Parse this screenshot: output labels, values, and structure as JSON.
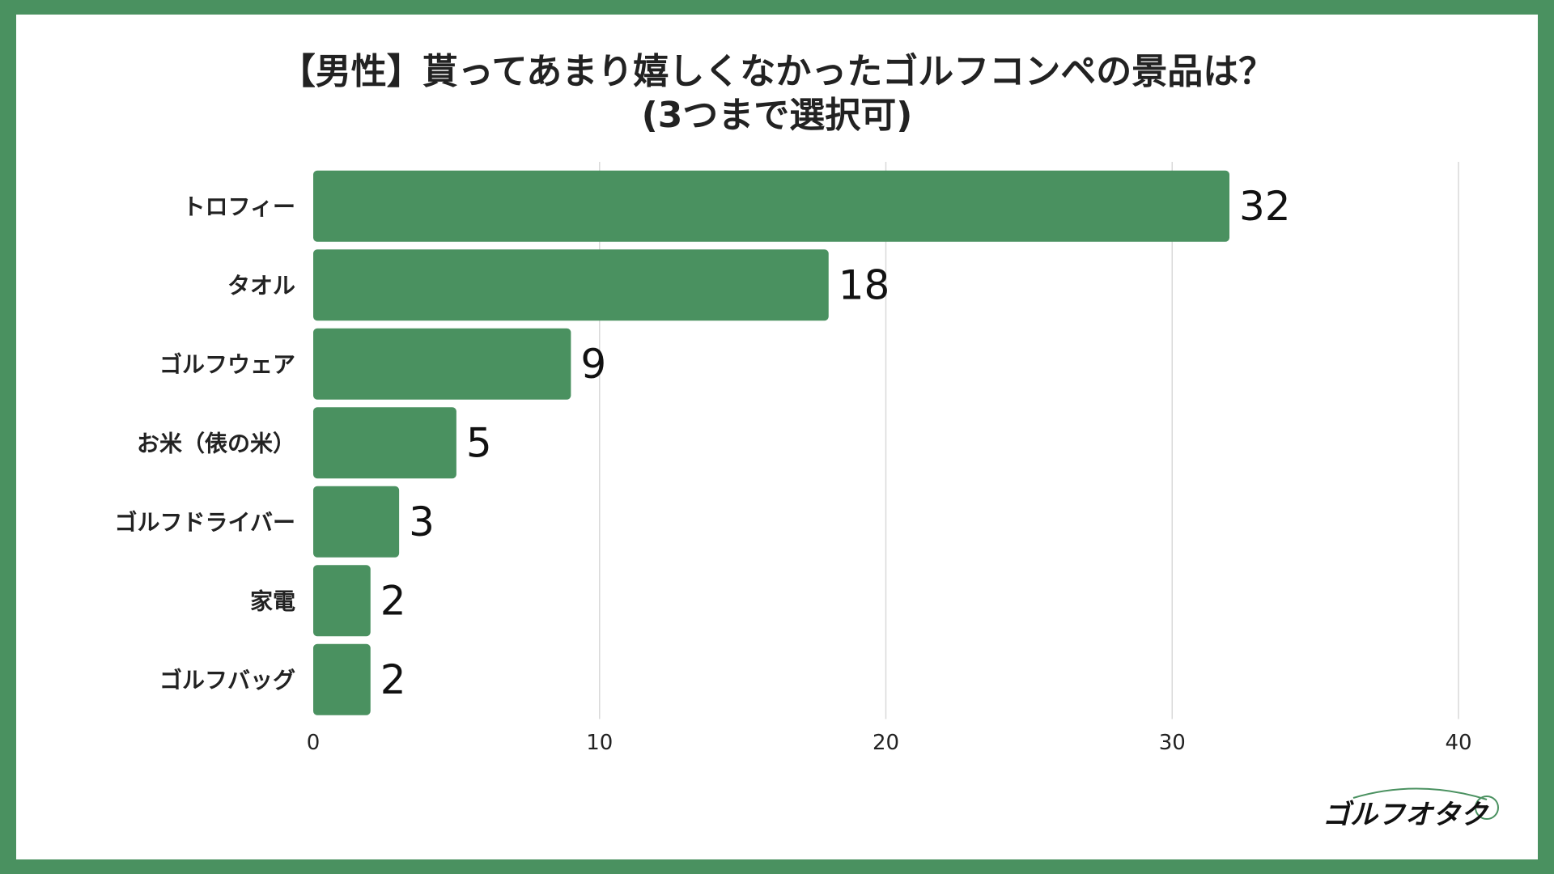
{
  "title_line1": "【男性】貰ってあまり嬉しくなかったゴルフコンペの景品は？",
  "title_line2": "(3つまで選択可)",
  "logo_text": "ゴルフオタク",
  "colors": {
    "bar": "#4a9160",
    "frame": "#4a9160",
    "grid": "#d9d9d9",
    "text": "#222222"
  },
  "chart_data": {
    "type": "bar",
    "orientation": "horizontal",
    "title": "【男性】貰ってあまり嬉しくなかったゴルフコンペの景品は？(3つまで選択可)",
    "categories": [
      "トロフィー",
      "タオル",
      "ゴルフウェア",
      "お米（俵の米）",
      "ゴルフドライバー",
      "家電",
      "ゴルフバッグ"
    ],
    "values": [
      32,
      18,
      9,
      5,
      3,
      2,
      2
    ],
    "xlim": [
      0,
      40
    ],
    "xticks": [
      0,
      10,
      20,
      30,
      40
    ],
    "grid": true,
    "data_labels": true
  }
}
